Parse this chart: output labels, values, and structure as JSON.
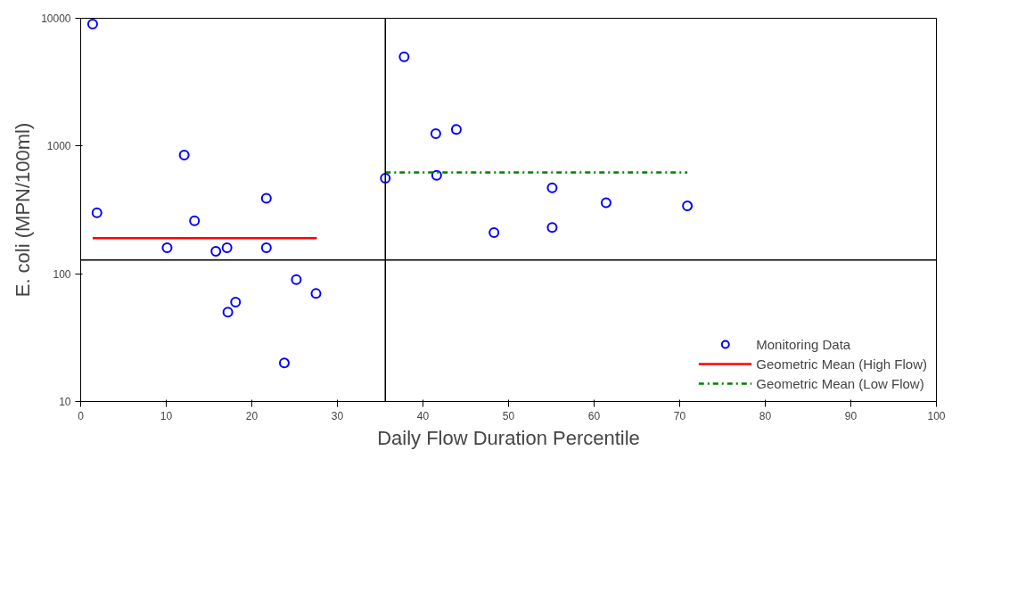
{
  "chart_data": {
    "type": "scatter",
    "xlabel": "Daily Flow Duration Percentile",
    "ylabel": "E. coli (MPN/100ml)",
    "xlim": [
      0,
      100
    ],
    "xticks": [
      0,
      10,
      20,
      30,
      40,
      50,
      60,
      70,
      80,
      90,
      100
    ],
    "ylim": [
      10,
      10000
    ],
    "yticks": [
      10,
      100,
      1000,
      10000
    ],
    "log": "y",
    "grid": false,
    "legend": "bottom right",
    "marker": "circle",
    "series": [
      {
        "name": "Monitoring Data",
        "color": "#0000ff",
        "type": "scatter",
        "x": [
          1.4,
          1.9,
          10.1,
          12.1,
          13.3,
          15.8,
          17.1,
          17.2,
          18.1,
          21.7,
          21.7,
          23.8,
          25.2,
          27.5,
          35.6,
          37.8,
          41.5,
          41.6,
          43.9,
          48.3,
          55.1,
          55.1,
          61.4,
          70.9
        ],
        "values": [
          9000,
          300,
          160,
          850,
          260,
          150,
          160,
          50,
          60,
          390,
          160,
          20,
          90,
          70,
          560,
          5000,
          1250,
          590,
          1350,
          210,
          470,
          230,
          360,
          340
        ]
      },
      {
        "name": "Geometric Mean (High Flow)",
        "color": "#ff0000",
        "type": "line",
        "line_style": "solid",
        "marker": "none",
        "x": [
          1.4,
          27.6
        ],
        "values": [
          190,
          190
        ]
      },
      {
        "name": "Geometric Mean (Low Flow)",
        "color": "#008000",
        "type": "line",
        "line_style": "dashed",
        "marker": "none",
        "x": [
          35.6,
          70.9
        ],
        "values": [
          620,
          620
        ]
      }
    ],
    "ref_lines": [
      {
        "axis": "x",
        "value": 35.6,
        "color": "#000000"
      },
      {
        "axis": "y",
        "value": 128,
        "color": "#000000"
      }
    ]
  }
}
